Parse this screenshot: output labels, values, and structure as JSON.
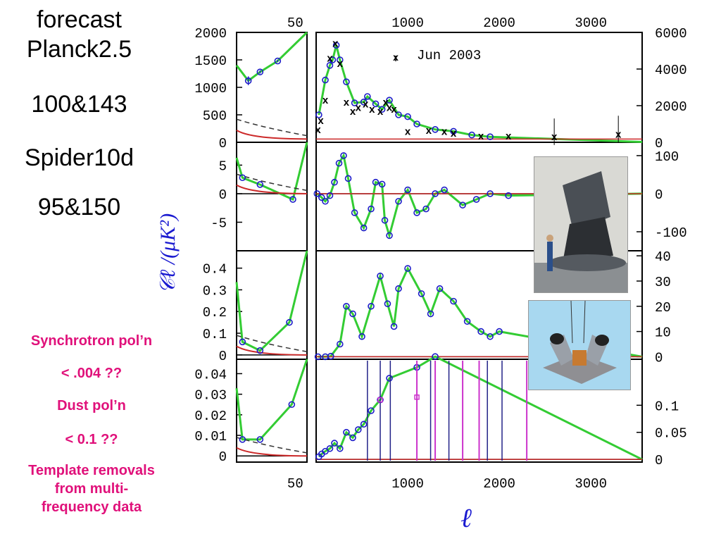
{
  "left_text": {
    "forecast": "forecast",
    "planck": "Planck2.5",
    "planck_freqs": "100&143",
    "spider": "Spider10d",
    "spider_freqs": "95&150"
  },
  "pol_notes": {
    "sync": "Synchrotron pol’n",
    "sync_limit": "< .004 ??",
    "dust": "Dust pol’n",
    "dust_limit": "< 0.1 ??",
    "template_1": "Template removals",
    "template_2": "from multi-",
    "template_3": "frequency data"
  },
  "photos": {
    "planck": "planck-satellite-photo",
    "spider": "spider-instrument-drawing"
  },
  "chart_data": {
    "type": "line",
    "ylabel": "𝒞ℓ /(μK²)",
    "xlabel": "ℓ",
    "x_ticks_left": [
      50
    ],
    "x_ticks_right": [
      1000,
      2000,
      3000
    ],
    "legend": "Jun 2003",
    "panels": [
      {
        "id": "TT",
        "left_ticks": [
          0,
          500,
          1000,
          1500,
          2000
        ],
        "left_ylim": [
          0,
          2000
        ],
        "right_ticks": [
          0,
          2000,
          4000,
          6000
        ],
        "right_ylim": [
          0,
          6000
        ],
        "left_points": [
          [
            10,
            1120,
            80
          ],
          [
            20,
            1280,
            30
          ],
          [
            35,
            1480,
            20
          ]
        ],
        "right_points": [
          [
            30,
            1500
          ],
          [
            100,
            3400
          ],
          [
            150,
            4200
          ],
          [
            180,
            4500
          ],
          [
            220,
            5300
          ],
          [
            260,
            4500
          ],
          [
            330,
            3300
          ],
          [
            420,
            2150
          ],
          [
            520,
            2200
          ],
          [
            560,
            2500
          ],
          [
            650,
            2100
          ],
          [
            720,
            1800
          ],
          [
            800,
            2300
          ],
          [
            900,
            1500
          ],
          [
            1000,
            1400
          ],
          [
            1100,
            1000
          ],
          [
            1300,
            700
          ],
          [
            1500,
            600
          ],
          [
            1700,
            400
          ],
          [
            1900,
            300
          ]
        ],
        "wmap_points": [
          [
            20,
            700
          ],
          [
            50,
            1200
          ],
          [
            100,
            2300
          ],
          [
            150,
            4600
          ],
          [
            210,
            5400
          ],
          [
            260,
            4300
          ],
          [
            330,
            2200
          ],
          [
            400,
            1700
          ],
          [
            460,
            1900
          ],
          [
            540,
            2100
          ],
          [
            610,
            1800
          ],
          [
            700,
            1700
          ],
          [
            760,
            2200
          ],
          [
            800,
            1900
          ],
          [
            850,
            1800
          ],
          [
            1000,
            600
          ],
          [
            1230,
            650
          ],
          [
            1400,
            600
          ],
          [
            1500,
            500
          ],
          [
            1800,
            350
          ],
          [
            2100,
            350
          ],
          [
            2600,
            300
          ],
          [
            3300,
            450
          ]
        ]
      },
      {
        "id": "TE",
        "left_ticks": [
          -5,
          0,
          5
        ],
        "left_ylim": [
          -10,
          9
        ],
        "right_ticks": [
          -100,
          0,
          100
        ],
        "right_ylim": [
          -150,
          135
        ],
        "left_points": [
          [
            5,
            2.8
          ],
          [
            20,
            1.6
          ],
          [
            48,
            -1.0
          ]
        ],
        "right_points": [
          [
            10,
            0
          ],
          [
            60,
            -10
          ],
          [
            100,
            -20
          ],
          [
            150,
            -5
          ],
          [
            200,
            30
          ],
          [
            250,
            80
          ],
          [
            300,
            100
          ],
          [
            350,
            40
          ],
          [
            420,
            -50
          ],
          [
            520,
            -90
          ],
          [
            600,
            -40
          ],
          [
            650,
            30
          ],
          [
            720,
            25
          ],
          [
            750,
            -70
          ],
          [
            800,
            -110
          ],
          [
            900,
            -20
          ],
          [
            1000,
            10
          ],
          [
            1100,
            -50
          ],
          [
            1200,
            -40
          ],
          [
            1300,
            0
          ],
          [
            1400,
            10
          ],
          [
            1600,
            -30
          ],
          [
            1750,
            -15
          ],
          [
            1900,
            0
          ],
          [
            2100,
            -5
          ]
        ]
      },
      {
        "id": "EE",
        "left_ticks": [
          0,
          0.1,
          0.2,
          0.3,
          0.4
        ],
        "left_ylim": [
          -0.02,
          0.48
        ],
        "right_ticks": [
          0,
          10,
          20,
          30,
          40
        ],
        "right_ylim": [
          -1,
          42
        ],
        "left_points": [
          [
            5,
            0.06
          ],
          [
            20,
            0.02
          ],
          [
            45,
            0.15
          ]
        ],
        "right_points": [
          [
            20,
            0
          ],
          [
            100,
            0
          ],
          [
            160,
            0.2
          ],
          [
            260,
            5
          ],
          [
            330,
            20
          ],
          [
            400,
            17
          ],
          [
            500,
            8
          ],
          [
            600,
            20
          ],
          [
            700,
            32
          ],
          [
            780,
            21
          ],
          [
            850,
            12
          ],
          [
            900,
            27
          ],
          [
            1000,
            35
          ],
          [
            1150,
            25
          ],
          [
            1250,
            17
          ],
          [
            1350,
            27
          ],
          [
            1500,
            22
          ],
          [
            1650,
            14
          ],
          [
            1800,
            10
          ],
          [
            1900,
            8
          ],
          [
            2000,
            10
          ]
        ]
      },
      {
        "id": "BB",
        "left_ticks": [
          0,
          0.01,
          0.02,
          0.03,
          0.04
        ],
        "left_ylim": [
          -0.003,
          0.047
        ],
        "right_ticks": [
          0,
          0.05,
          0.1
        ],
        "right_ylim": [
          -0.005,
          0.185
        ],
        "left_points": [
          [
            5,
            0.008
          ],
          [
            20,
            0.008
          ],
          [
            47,
            0.025
          ]
        ],
        "right_points": [
          [
            30,
            0.005
          ],
          [
            60,
            0.01
          ],
          [
            100,
            0.015
          ],
          [
            150,
            0.02
          ],
          [
            200,
            0.03
          ],
          [
            260,
            0.02
          ],
          [
            330,
            0.05
          ],
          [
            400,
            0.04
          ],
          [
            460,
            0.055
          ],
          [
            520,
            0.065
          ],
          [
            600,
            0.09
          ],
          [
            700,
            0.11
          ],
          [
            800,
            0.15
          ],
          [
            1100,
            0.17
          ],
          [
            1300,
            0.19
          ]
        ],
        "magenta_points": [
          [
            700,
            0.11
          ],
          [
            1100,
            0.115
          ]
        ],
        "magenta_bars_x": [
          1100,
          1300,
          1600,
          1780,
          2300
        ]
      }
    ],
    "colors": {
      "model": "#33cc33",
      "points": "#1c1cc8",
      "wmap": "#000000",
      "foreground_red": "#cc2a2a",
      "foreground_dashed": "#333333",
      "magenta": "#cc33cc",
      "ylabel": "#1a1ad0"
    }
  }
}
